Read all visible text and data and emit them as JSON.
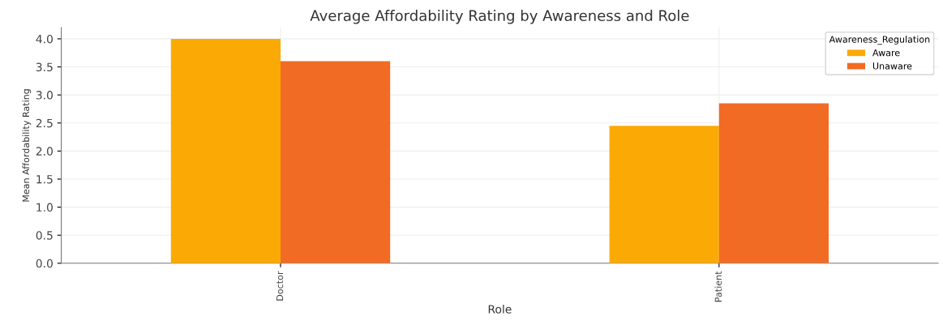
{
  "chart_data": {
    "type": "bar",
    "title": "Average Affordability Rating by Awareness and Role",
    "xlabel": "Role",
    "ylabel": "Mean Affordability Rating",
    "legend_title": "Awareness_Regulation",
    "categories": [
      "Doctor",
      "Patient"
    ],
    "series": [
      {
        "name": "Aware",
        "color": "#fbaa05",
        "values": [
          4.0,
          2.45
        ]
      },
      {
        "name": "Unaware",
        "color": "#f26b24",
        "values": [
          3.6,
          2.85
        ]
      }
    ],
    "ylim": [
      0,
      4.2
    ],
    "yticks": [
      {
        "value": 0,
        "label": "0.0"
      },
      0.5,
      {
        "value": 1,
        "label": "1.0"
      },
      1.5,
      {
        "value": 2,
        "label": "2.0"
      },
      2.5,
      {
        "value": 3,
        "label": "3.0"
      },
      3.5,
      {
        "value": 4,
        "label": "4.0"
      }
    ],
    "grid": true,
    "legend": "top right"
  }
}
